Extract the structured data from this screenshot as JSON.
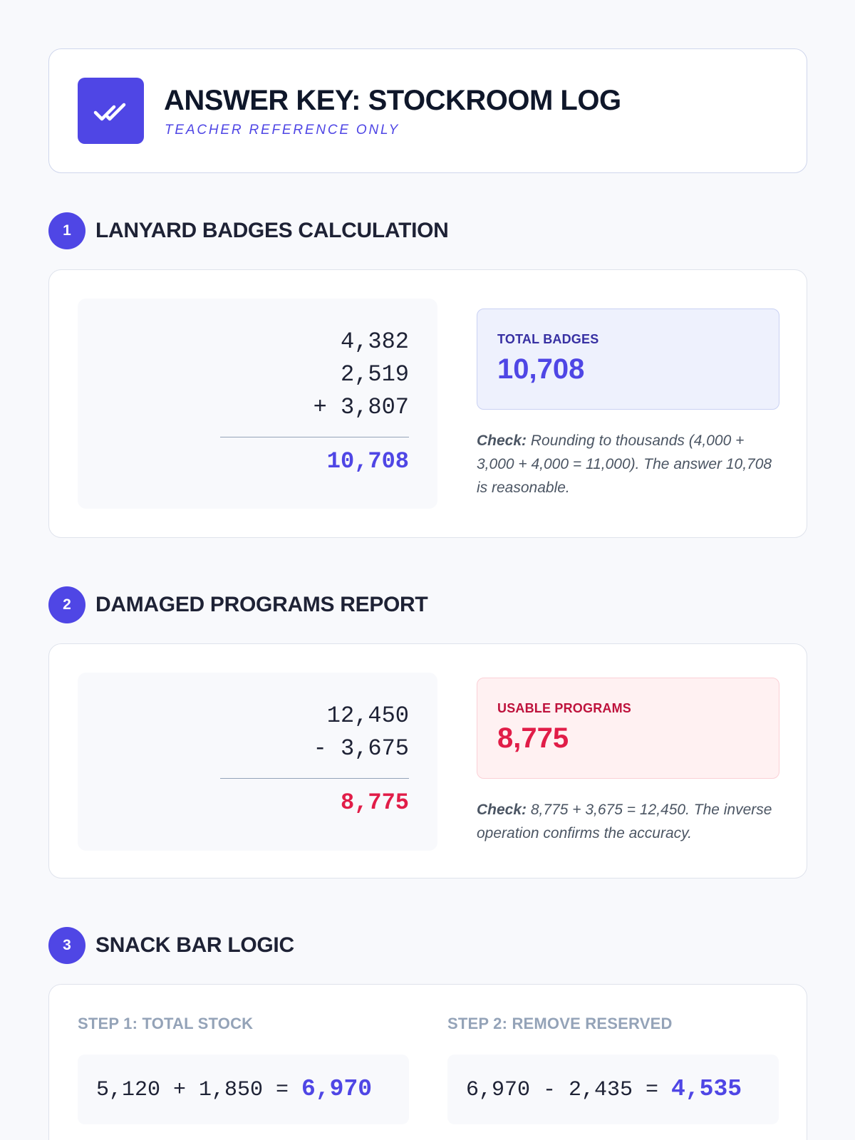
{
  "header": {
    "title": "Answer Key: Stockroom Log",
    "subtitle": "Teacher Reference Only",
    "icon": "double-check-icon"
  },
  "colors": {
    "accent": "#4f46e5",
    "danger": "#e11d48"
  },
  "sections": [
    {
      "number": "1",
      "title": "Lanyard Badges Calculation",
      "work": {
        "line1": "4,382",
        "line2": "2,519",
        "line3": "+ 3,807",
        "result": "10,708"
      },
      "result_label": "Total Badges",
      "result_value": "10,708",
      "check_label": "Check:",
      "check_text": "Rounding to thousands (4,000 + 3,000 + 4,000 = 11,000). The answer 10,708 is reasonable."
    },
    {
      "number": "2",
      "title": "Damaged Programs Report",
      "work": {
        "line1": "12,450",
        "line2": "- 3,675",
        "result": "8,775"
      },
      "result_label": "Usable Programs",
      "result_value": "8,775",
      "check_label": "Check:",
      "check_text": "8,775 + 3,675 = 12,450. The inverse operation confirms the accuracy."
    },
    {
      "number": "3",
      "title": "Snack Bar Logic",
      "steps": [
        {
          "label": "Step 1: Total Stock",
          "expression": "5,120 + 1,850 = ",
          "answer": "6,970"
        },
        {
          "label": "Step 2: Remove Reserved",
          "expression": "6,970 - 2,435 = ",
          "answer": "4,535"
        }
      ]
    }
  ]
}
